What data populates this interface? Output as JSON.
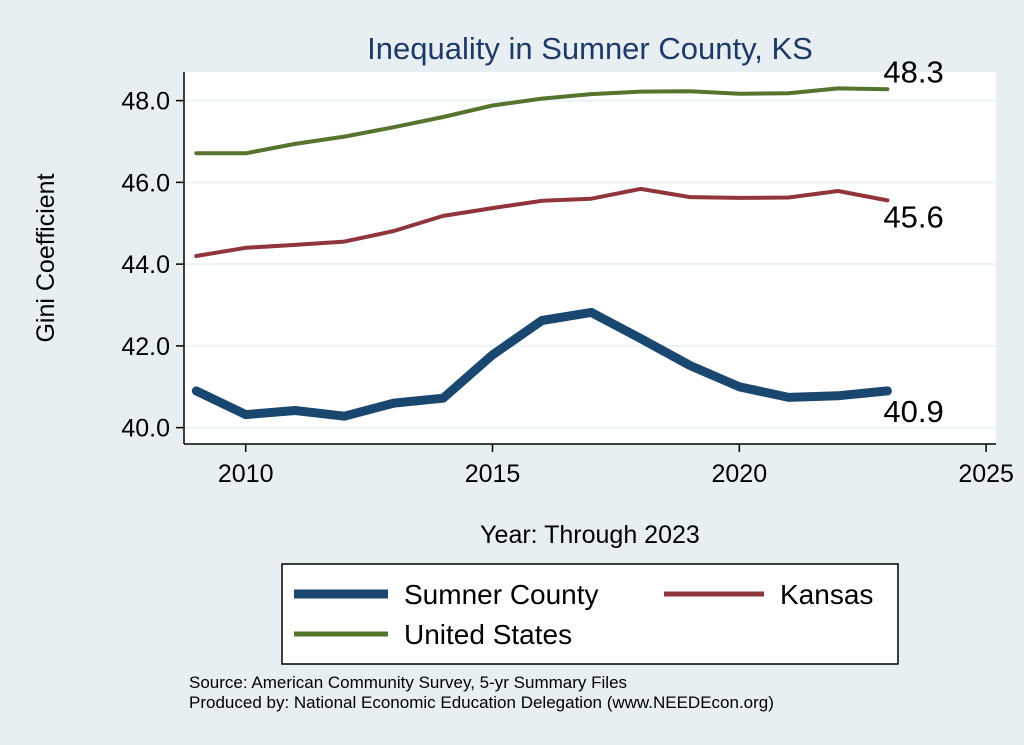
{
  "chart_data": {
    "type": "line",
    "title": "Inequality in Sumner County, KS",
    "xlabel": "Year: Through 2023",
    "ylabel": "Gini Coefficient",
    "xlim": [
      2008.75,
      2025.2
    ],
    "ylim": [
      39.6,
      48.7
    ],
    "xticks": [
      2010,
      2015,
      2020,
      2025
    ],
    "yticks": [
      40,
      42,
      44,
      46,
      48
    ],
    "ytick_labels": [
      "40.0",
      "42.0",
      "44.0",
      "46.0",
      "48.0"
    ],
    "x": [
      2009,
      2010,
      2011,
      2012,
      2013,
      2014,
      2015,
      2016,
      2017,
      2018,
      2019,
      2020,
      2021,
      2022,
      2023
    ],
    "series": [
      {
        "name": "Sumner County",
        "color": "#1a476f",
        "values": [
          40.9,
          40.32,
          40.42,
          40.28,
          40.6,
          40.72,
          41.78,
          42.62,
          42.82,
          42.18,
          41.52,
          41.0,
          40.74,
          40.78,
          40.9
        ],
        "end_label": "40.9"
      },
      {
        "name": "Kansas",
        "color": "#90353b",
        "values": [
          44.2,
          44.4,
          44.47,
          44.55,
          44.81,
          45.18,
          45.37,
          45.55,
          45.6,
          45.84,
          45.64,
          45.62,
          45.63,
          45.79,
          45.56
        ],
        "end_label": "45.6"
      },
      {
        "name": "United States",
        "color": "#55752f",
        "values": [
          46.71,
          46.71,
          46.94,
          47.12,
          47.35,
          47.6,
          47.88,
          48.05,
          48.16,
          48.22,
          48.23,
          48.17,
          48.18,
          48.3,
          48.28
        ],
        "end_label": "48.3"
      }
    ],
    "legend": {
      "placement": "bottom",
      "entries": [
        "Sumner County",
        "Kansas",
        "United States"
      ]
    }
  },
  "notes": {
    "source": "Source: American Community Survey, 5-yr Summary Files",
    "produced_by": "Produced by: National Economic Education Delegation (www.NEEDEcon.org)"
  }
}
